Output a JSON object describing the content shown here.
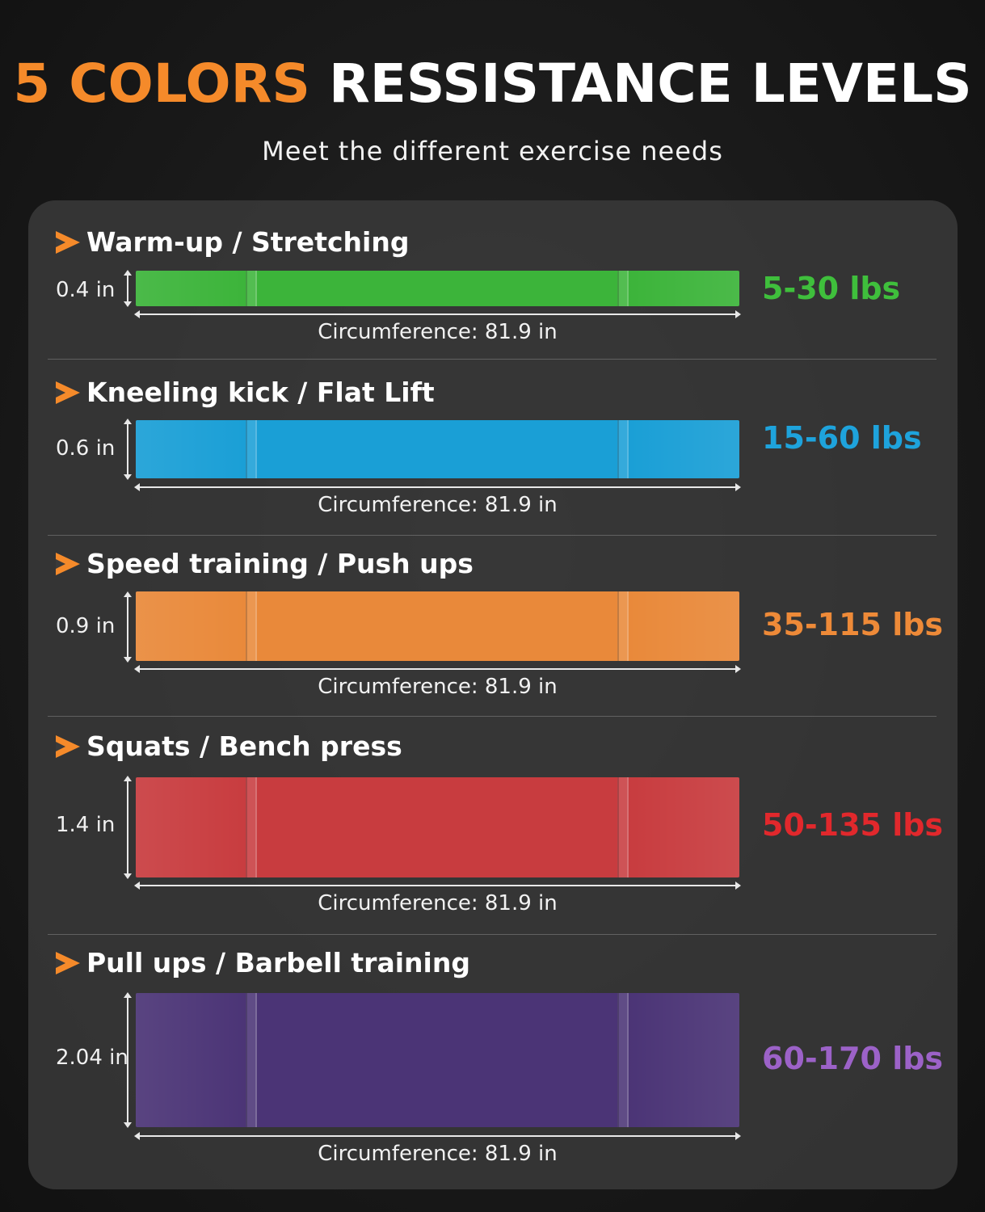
{
  "header": {
    "title_accent": "5 COLORS",
    "title_rest": "RESSISTANCE LEVELS",
    "subtitle": "Meet the different exercise needs"
  },
  "colors": {
    "accent": "#f58a2a",
    "green": "#3cb43a",
    "blue": "#1a9fd6",
    "orange": "#e9893a",
    "red": "#c83c3f",
    "purple": "#4b3476"
  },
  "bands": [
    {
      "title": "Warm-up / Stretching",
      "thickness": "0.4 in",
      "circumference": "Circumference: 81.9 in",
      "resistance": "5-30 lbs",
      "band_color": "#3cb43a",
      "label_color": "#3fbf3c"
    },
    {
      "title": "Kneeling kick / Flat Lift",
      "thickness": "0.6 in",
      "circumference": "Circumference: 81.9 in",
      "resistance": "15-60  lbs",
      "band_color": "#1a9fd6",
      "label_color": "#1ea3dc"
    },
    {
      "title": "Speed training / Push ups",
      "thickness": "0.9 in",
      "circumference": "Circumference: 81.9 in",
      "resistance": "35-115 lbs",
      "band_color": "#e9893a",
      "label_color": "#ee8a38"
    },
    {
      "title": "Squats / Bench press",
      "thickness": "1.4 in",
      "circumference": "Circumference: 81.9 in",
      "resistance": "50-135 lbs",
      "band_color": "#c83c3f",
      "label_color": "#e1282c"
    },
    {
      "title": "Pull ups / Barbell training",
      "thickness": "2.04 in",
      "circumference": "Circumference: 81.9 in",
      "resistance": "60-170 lbs",
      "band_color": "#4b3476",
      "label_color": "#9c62c8"
    }
  ]
}
